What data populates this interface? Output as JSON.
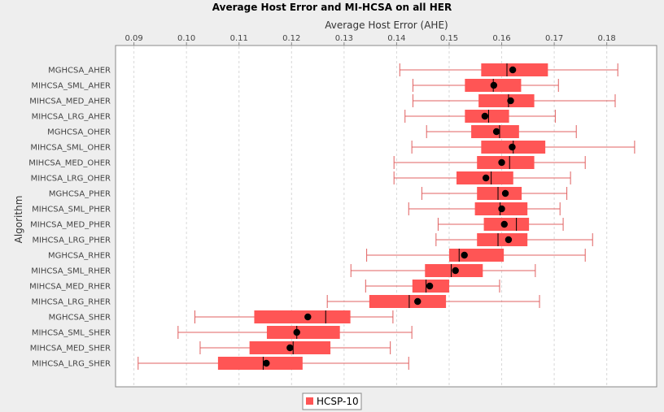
{
  "chart_data": {
    "type": "boxplot",
    "title": "Average Host Error and MI-HCSA on all HER",
    "xlabel": "Average Host Error (AHE)",
    "ylabel": "Algorithm",
    "xlim": [
      0.0865,
      0.1895
    ],
    "xticks": [
      "0.09",
      "0.10",
      "0.11",
      "0.12",
      "0.13",
      "0.14",
      "0.15",
      "0.16",
      "0.17",
      "0.18"
    ],
    "grid": true,
    "legend": {
      "position": "bottom",
      "entries": [
        "HCSP-10"
      ]
    },
    "colors": {
      "box": "#ff5555",
      "whisker": "#e06060",
      "median": "#000000",
      "mean": "#000000",
      "grid": "#d8d8d8"
    },
    "categories": [
      "MGHCSA_AHER",
      "MIHCSA_SML_AHER",
      "MIHCSA_MED_AHER",
      "MIHCSA_LRG_AHER",
      "MGHCSA_OHER",
      "MIHCSA_SML_OHER",
      "MIHCSA_MED_OHER",
      "MIHCSA_LRG_OHER",
      "MGHCSA_PHER",
      "MIHCSA_SML_PHER",
      "MIHCSA_MED_PHER",
      "MIHCSA_LRG_PHER",
      "MGHCSA_RHER",
      "MIHCSA_SML_RHER",
      "MIHCSA_MED_RHER",
      "MIHCSA_LRG_RHER",
      "MGHCSA_SHER",
      "MIHCSA_SML_SHER",
      "MIHCSA_MED_SHER",
      "MIHCSA_LRG_SHER"
    ],
    "series": [
      {
        "name": "HCSP-10",
        "boxes": [
          {
            "min": 0.1406,
            "q1": 0.1561,
            "median": 0.161,
            "q3": 0.1688,
            "max": 0.1821,
            "mean": 0.1621
          },
          {
            "min": 0.1431,
            "q1": 0.153,
            "median": 0.1584,
            "q3": 0.1637,
            "max": 0.1708,
            "mean": 0.1585
          },
          {
            "min": 0.1431,
            "q1": 0.1556,
            "median": 0.1613,
            "q3": 0.1662,
            "max": 0.1816,
            "mean": 0.1617
          },
          {
            "min": 0.1416,
            "q1": 0.153,
            "median": 0.1575,
            "q3": 0.1614,
            "max": 0.1702,
            "mean": 0.1568
          },
          {
            "min": 0.1457,
            "q1": 0.1542,
            "median": 0.1596,
            "q3": 0.1633,
            "max": 0.1742,
            "mean": 0.159
          },
          {
            "min": 0.1429,
            "q1": 0.1561,
            "median": 0.1622,
            "q3": 0.1683,
            "max": 0.1853,
            "mean": 0.162
          },
          {
            "min": 0.1395,
            "q1": 0.1553,
            "median": 0.1615,
            "q3": 0.1662,
            "max": 0.1759,
            "mean": 0.16
          },
          {
            "min": 0.1395,
            "q1": 0.1514,
            "median": 0.158,
            "q3": 0.1622,
            "max": 0.1731,
            "mean": 0.157
          },
          {
            "min": 0.1448,
            "q1": 0.1553,
            "median": 0.1593,
            "q3": 0.1638,
            "max": 0.1724,
            "mean": 0.1607
          },
          {
            "min": 0.1423,
            "q1": 0.1549,
            "median": 0.1597,
            "q3": 0.1649,
            "max": 0.1711,
            "mean": 0.16
          },
          {
            "min": 0.1479,
            "q1": 0.1566,
            "median": 0.1628,
            "q3": 0.1652,
            "max": 0.1717,
            "mean": 0.1605
          },
          {
            "min": 0.1475,
            "q1": 0.1553,
            "median": 0.1593,
            "q3": 0.1649,
            "max": 0.1773,
            "mean": 0.1613
          },
          {
            "min": 0.1343,
            "q1": 0.15,
            "median": 0.1519,
            "q3": 0.1604,
            "max": 0.1759,
            "mean": 0.1529
          },
          {
            "min": 0.1313,
            "q1": 0.1454,
            "median": 0.1504,
            "q3": 0.1564,
            "max": 0.1664,
            "mean": 0.1512
          },
          {
            "min": 0.1341,
            "q1": 0.143,
            "median": 0.1456,
            "q3": 0.15,
            "max": 0.1596,
            "mean": 0.1463
          },
          {
            "min": 0.1268,
            "q1": 0.1348,
            "median": 0.1424,
            "q3": 0.1494,
            "max": 0.1672,
            "mean": 0.144
          },
          {
            "min": 0.1016,
            "q1": 0.1129,
            "median": 0.1265,
            "q3": 0.1312,
            "max": 0.1393,
            "mean": 0.1231
          },
          {
            "min": 0.0984,
            "q1": 0.1153,
            "median": 0.121,
            "q3": 0.1292,
            "max": 0.1429,
            "mean": 0.121
          },
          {
            "min": 0.1026,
            "q1": 0.112,
            "median": 0.1203,
            "q3": 0.1274,
            "max": 0.1388,
            "mean": 0.1197
          },
          {
            "min": 0.0908,
            "q1": 0.106,
            "median": 0.1146,
            "q3": 0.1221,
            "max": 0.1423,
            "mean": 0.1152
          }
        ]
      }
    ]
  }
}
